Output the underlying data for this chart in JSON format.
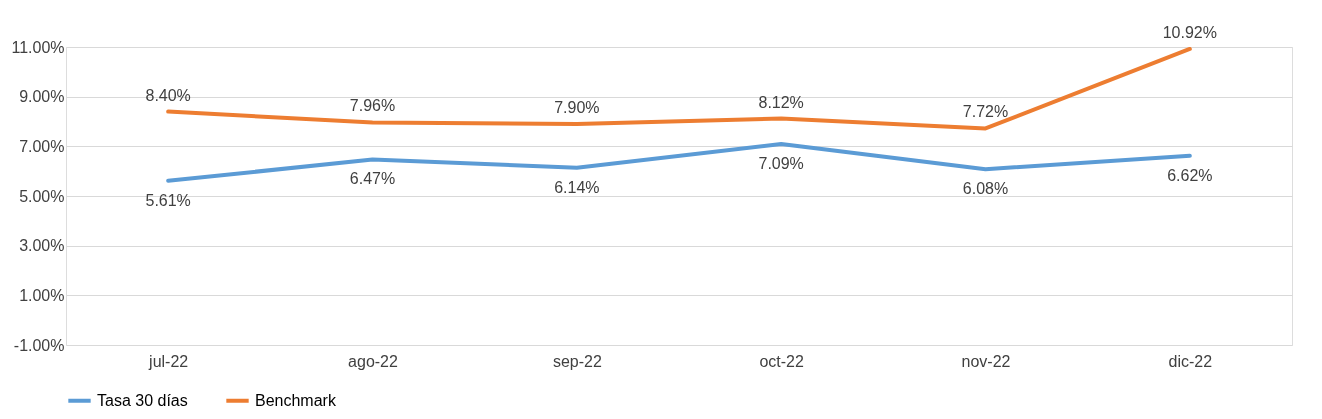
{
  "chart_data": {
    "type": "line",
    "categories": [
      "jul-22",
      "ago-22",
      "sep-22",
      "oct-22",
      "nov-22",
      "dic-22"
    ],
    "series": [
      {
        "name": "Tasa 30 días",
        "color": "#5b9bd5",
        "values": [
          5.61,
          6.47,
          6.14,
          7.09,
          6.08,
          6.62
        ],
        "value_labels": [
          "5.61%",
          "6.47%",
          "6.14%",
          "7.09%",
          "6.08%",
          "6.62%"
        ]
      },
      {
        "name": "Benchmark",
        "color": "#ed7d31",
        "values": [
          8.4,
          7.96,
          7.9,
          8.12,
          7.72,
          10.92
        ],
        "value_labels": [
          "8.40%",
          "7.96%",
          "7.90%",
          "8.12%",
          "7.72%",
          "10.92%"
        ]
      }
    ],
    "ylim": [
      -1,
      11
    ],
    "yticks": [
      {
        "value": -1,
        "label": "-1.00%"
      },
      {
        "value": 1,
        "label": "1.00%"
      },
      {
        "value": 3,
        "label": "3.00%"
      },
      {
        "value": 5,
        "label": "5.00%"
      },
      {
        "value": 7,
        "label": "7.00%"
      },
      {
        "value": 9,
        "label": "9.00%"
      },
      {
        "value": 11,
        "label": "11.00%"
      }
    ],
    "grid": "y",
    "legend": "bottom",
    "marker": "none",
    "line_style": "solid"
  }
}
